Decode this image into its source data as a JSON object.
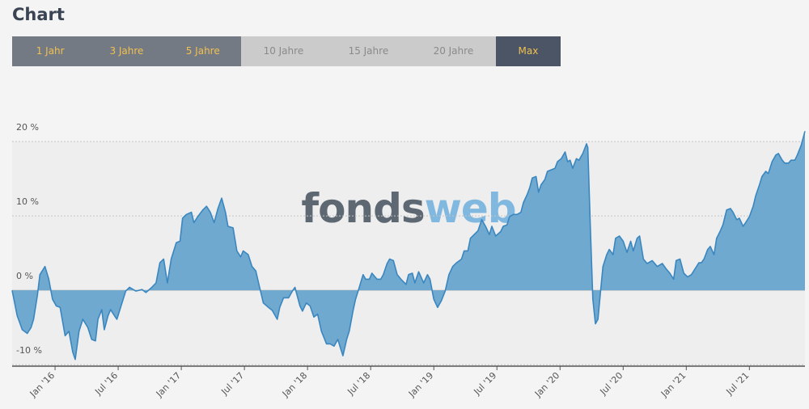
{
  "header": {
    "title": "Chart"
  },
  "range_buttons": [
    "1 Jahr",
    "3 Jahre",
    "5 Jahre",
    "10 Jahre",
    "15 Jahre",
    "20 Jahre",
    "Max"
  ],
  "chart_data": {
    "type": "area",
    "watermark": [
      "fonds",
      "web"
    ],
    "color": "#70a9d0",
    "line_color": "#3a86bf",
    "x": [
      2015.66,
      2015.7,
      2015.74,
      2015.78,
      2015.81,
      2015.83,
      2015.86,
      2015.88,
      2015.92,
      2015.95,
      2015.98,
      2016.01,
      2016.04,
      2016.08,
      2016.11,
      2016.14,
      2016.16,
      2016.19,
      2016.22,
      2016.26,
      2016.29,
      2016.32,
      2016.34,
      2016.37,
      2016.39,
      2016.42,
      2016.44,
      2016.47,
      2016.49,
      2016.53,
      2016.56,
      2016.59,
      2016.64,
      2016.69,
      2016.72,
      2016.76,
      2016.8,
      2016.83,
      2016.86,
      2016.89,
      2016.92,
      2016.96,
      2016.99,
      2017.01,
      2017.04,
      2017.08,
      2017.1,
      2017.13,
      2017.17,
      2017.2,
      2017.23,
      2017.26,
      2017.29,
      2017.32,
      2017.35,
      2017.37,
      2017.41,
      2017.44,
      2017.47,
      2017.49,
      2017.53,
      2017.56,
      2017.59,
      2017.62,
      2017.65,
      2017.69,
      2017.72,
      2017.76,
      2017.78,
      2017.81,
      2017.85,
      2017.88,
      2017.9,
      2017.94,
      2017.96,
      2017.99,
      2018.02,
      2018.05,
      2018.08,
      2018.11,
      2018.15,
      2018.18,
      2018.21,
      2018.24,
      2018.26,
      2018.28,
      2018.31,
      2018.33,
      2018.36,
      2018.38,
      2018.41,
      2018.44,
      2018.46,
      2018.49,
      2018.51,
      2018.55,
      2018.58,
      2018.6,
      2018.63,
      2018.65,
      2018.68,
      2018.71,
      2018.74,
      2018.78,
      2018.8,
      2018.83,
      2018.85,
      2018.88,
      2018.92,
      2018.95,
      2018.97,
      2019.0,
      2019.03,
      2019.06,
      2019.09,
      2019.12,
      2019.15,
      2019.18,
      2019.22,
      2019.24,
      2019.27,
      2019.29,
      2019.32,
      2019.35,
      2019.38,
      2019.41,
      2019.44,
      2019.46,
      2019.49,
      2019.53,
      2019.55,
      2019.58,
      2019.6,
      2019.63,
      2019.66,
      2019.69,
      2019.71,
      2019.74,
      2019.76,
      2019.78,
      2019.81,
      2019.83,
      2019.85,
      2019.88,
      2019.9,
      2019.93,
      2019.96,
      2019.98,
      2020.01,
      2020.04,
      2020.06,
      2020.08,
      2020.1,
      2020.13,
      2020.15,
      2020.18,
      2020.21,
      2020.22,
      2020.24,
      2020.26,
      2020.28,
      2020.3,
      2020.32,
      2020.34,
      2020.37,
      2020.39,
      2020.42,
      2020.44,
      2020.47,
      2020.5,
      2020.53,
      2020.56,
      2020.58,
      2020.61,
      2020.63,
      2020.66,
      2020.69,
      2020.73,
      2020.77,
      2020.81,
      2020.84,
      2020.87,
      2020.9,
      2020.92,
      2020.95,
      2020.98,
      2021.01,
      2021.04,
      2021.07,
      2021.1,
      2021.12,
      2021.14,
      2021.17,
      2021.19,
      2021.22,
      2021.24,
      2021.27,
      2021.29,
      2021.32,
      2021.35,
      2021.37,
      2021.4,
      2021.42,
      2021.45,
      2021.47,
      2021.5,
      2021.53,
      2021.55,
      2021.58,
      2021.6,
      2021.63,
      2021.65,
      2021.68,
      2021.71,
      2021.73,
      2021.76,
      2021.78,
      2021.81,
      2021.83,
      2021.86,
      2021.88,
      2021.91,
      2021.94
    ],
    "values": [
      0,
      -3.4,
      -5.3,
      -5.8,
      -5.0,
      -3.9,
      -0.7,
      2.1,
      3.2,
      1.5,
      -1.2,
      -2.1,
      -2.3,
      -6.1,
      -5.5,
      -8.3,
      -9.3,
      -5.5,
      -3.9,
      -5.0,
      -6.6,
      -6.8,
      -3.9,
      -2.6,
      -5.3,
      -3.4,
      -2.6,
      -3.4,
      -3.9,
      -1.7,
      -0.1,
      0.4,
      -0.1,
      0.1,
      -0.3,
      0.3,
      1.0,
      3.7,
      4.2,
      1.0,
      4.2,
      6.4,
      6.6,
      9.7,
      10.2,
      10.5,
      9.1,
      9.9,
      10.8,
      11.3,
      10.5,
      9.1,
      11.0,
      12.4,
      10.5,
      8.6,
      8.4,
      5.3,
      4.5,
      5.3,
      4.8,
      3.2,
      2.6,
      0.4,
      -1.7,
      -2.3,
      -2.7,
      -3.9,
      -2.3,
      -1.0,
      -1.0,
      -0.1,
      0.4,
      -2.1,
      -2.8,
      -1.7,
      -2.1,
      -3.6,
      -3.2,
      -5.5,
      -7.2,
      -7.2,
      -7.5,
      -6.6,
      -7.7,
      -8.8,
      -6.6,
      -5.5,
      -2.8,
      -1.2,
      0.4,
      2.1,
      1.5,
      1.5,
      2.3,
      1.5,
      1.5,
      2.1,
      3.6,
      4.2,
      4.0,
      2.1,
      1.5,
      0.8,
      2.1,
      2.3,
      1.0,
      2.5,
      1.0,
      2.1,
      1.5,
      -1.2,
      -2.3,
      -1.4,
      -0.1,
      2.1,
      3.2,
      3.7,
      4.2,
      5.3,
      5.3,
      7.0,
      7.5,
      8.0,
      9.5,
      8.6,
      7.5,
      8.6,
      7.3,
      7.9,
      8.6,
      8.8,
      9.9,
      10.2,
      10.2,
      10.5,
      11.8,
      12.9,
      13.8,
      15.1,
      15.3,
      13.2,
      14.2,
      14.9,
      16.0,
      16.2,
      16.4,
      17.3,
      17.7,
      18.6,
      17.3,
      17.5,
      16.4,
      17.7,
      17.5,
      18.4,
      19.7,
      19.2,
      8.6,
      -1.2,
      -4.5,
      -3.9,
      -0.3,
      3.2,
      4.8,
      5.5,
      4.8,
      7.0,
      7.3,
      6.6,
      5.1,
      6.6,
      5.3,
      7.0,
      7.3,
      4.2,
      3.6,
      4.0,
      3.2,
      3.6,
      2.9,
      2.3,
      1.5,
      4.0,
      4.2,
      2.3,
      1.8,
      2.1,
      2.9,
      3.7,
      3.7,
      4.2,
      5.5,
      5.9,
      4.8,
      7.0,
      8.0,
      8.8,
      10.8,
      11.0,
      10.5,
      9.5,
      9.7,
      8.6,
      9.1,
      9.9,
      11.3,
      12.7,
      14.2,
      15.3,
      16.0,
      15.7,
      17.3,
      18.2,
      18.4,
      17.5,
      17.1,
      17.1,
      17.5,
      17.5,
      18.2,
      19.5,
      21.4
    ],
    "xlim": [
      2015.66,
      2021.94
    ],
    "xticks": [
      {
        "value": 2016,
        "label": "Jan '16"
      },
      {
        "value": 2016.5,
        "label": "Jul '16"
      },
      {
        "value": 2017,
        "label": "Jan '17"
      },
      {
        "value": 2017.5,
        "label": "Jul '17"
      },
      {
        "value": 2018,
        "label": "Jan '18"
      },
      {
        "value": 2018.5,
        "label": "Jul '18"
      },
      {
        "value": 2019,
        "label": "Jan '19"
      },
      {
        "value": 2019.5,
        "label": "Jul '19"
      },
      {
        "value": 2020,
        "label": "Jan '20"
      },
      {
        "value": 2020.5,
        "label": "Jul '20"
      },
      {
        "value": 2021,
        "label": "Jan '21"
      },
      {
        "value": 2021.5,
        "label": "Jul '21"
      }
    ],
    "ylim": [
      -10.2,
      22
    ],
    "yticks": [
      {
        "value": -10,
        "label": "-10 %"
      },
      {
        "value": 0,
        "label": "0 %"
      },
      {
        "value": 10,
        "label": "10 %"
      },
      {
        "value": 20,
        "label": "20 %"
      }
    ],
    "grid": true
  }
}
